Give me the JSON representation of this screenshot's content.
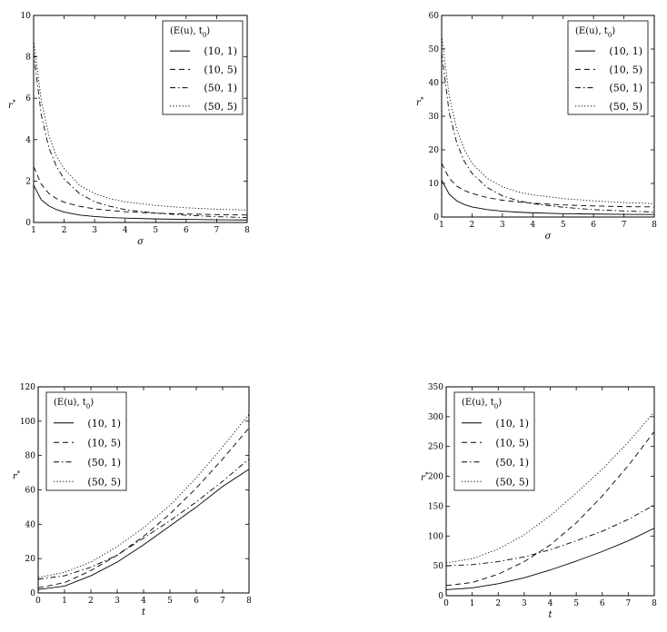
{
  "chart_data": [
    {
      "type": "line",
      "xlabel": "σ",
      "ylabel": "r*",
      "xlim": [
        1,
        8
      ],
      "ylim": [
        0,
        10
      ],
      "xticks": [
        "1",
        "2",
        "3",
        "4",
        "5",
        "6",
        "7",
        "8"
      ],
      "yticks": [
        "0",
        "2",
        "4",
        "6",
        "8",
        "10"
      ],
      "legend_title": "(E(u), t0)",
      "legend_position": "top-right",
      "x": [
        1.0,
        1.25,
        1.5,
        1.75,
        2.0,
        2.5,
        3.0,
        3.5,
        4.0,
        5.0,
        6.0,
        7.0,
        8.0
      ],
      "series": [
        {
          "name": "(10, 1)",
          "values": [
            1.8,
            1.1,
            0.8,
            0.62,
            0.5,
            0.36,
            0.29,
            0.24,
            0.21,
            0.17,
            0.15,
            0.13,
            0.12
          ],
          "dash": "solid"
        },
        {
          "name": "(10, 5)",
          "values": [
            2.7,
            1.85,
            1.4,
            1.15,
            0.98,
            0.78,
            0.66,
            0.58,
            0.52,
            0.45,
            0.41,
            0.38,
            0.36
          ],
          "dash": "dashed"
        },
        {
          "name": "(50, 1)",
          "values": [
            8.2,
            5.2,
            3.6,
            2.7,
            2.1,
            1.4,
            1.0,
            0.78,
            0.62,
            0.45,
            0.35,
            0.28,
            0.24
          ],
          "dash": "dashdot"
        },
        {
          "name": "(50, 5)",
          "values": [
            8.8,
            5.9,
            4.2,
            3.2,
            2.6,
            1.8,
            1.4,
            1.15,
            1.0,
            0.82,
            0.71,
            0.64,
            0.6
          ],
          "dash": "dotted"
        }
      ]
    },
    {
      "type": "line",
      "xlabel": "σ",
      "ylabel": "r*",
      "xlim": [
        1,
        8
      ],
      "ylim": [
        0,
        60
      ],
      "xticks": [
        "1",
        "2",
        "3",
        "4",
        "5",
        "6",
        "7",
        "8"
      ],
      "yticks": [
        "0",
        "10",
        "20",
        "30",
        "40",
        "50",
        "60"
      ],
      "legend_title": "(E(u), t0)",
      "legend_position": "top-right",
      "x": [
        1.0,
        1.25,
        1.5,
        1.75,
        2.0,
        2.5,
        3.0,
        3.5,
        4.0,
        5.0,
        6.0,
        7.0,
        8.0
      ],
      "series": [
        {
          "name": "(10, 1)",
          "values": [
            11,
            6.8,
            4.8,
            3.7,
            3.0,
            2.2,
            1.75,
            1.45,
            1.25,
            1.0,
            0.88,
            0.8,
            0.75
          ],
          "dash": "solid"
        },
        {
          "name": "(10, 5)",
          "values": [
            16,
            11.5,
            9.2,
            7.9,
            7.0,
            5.8,
            5.0,
            4.5,
            4.1,
            3.6,
            3.3,
            3.1,
            3.0
          ],
          "dash": "dashed"
        },
        {
          "name": "(50, 1)",
          "values": [
            49,
            31,
            22,
            16.5,
            13,
            8.8,
            6.3,
            4.9,
            4.0,
            2.9,
            2.2,
            1.8,
            1.5
          ],
          "dash": "dashdot"
        },
        {
          "name": "(50, 5)",
          "values": [
            54,
            36,
            26,
            20,
            16,
            11.5,
            9.0,
            7.5,
            6.6,
            5.5,
            4.8,
            4.3,
            4.0
          ],
          "dash": "dotted"
        }
      ]
    },
    {
      "type": "line",
      "xlabel": "t",
      "ylabel": "r*",
      "xlim": [
        0,
        8
      ],
      "ylim": [
        0,
        120
      ],
      "xticks": [
        "0",
        "1",
        "2",
        "3",
        "4",
        "5",
        "6",
        "7",
        "8"
      ],
      "yticks": [
        "0",
        "20",
        "40",
        "60",
        "80",
        "100",
        "120"
      ],
      "legend_title": "(E(u), t0)",
      "legend_position": "top-left",
      "x": [
        0,
        1,
        2,
        3,
        4,
        5,
        6,
        7,
        8
      ],
      "series": [
        {
          "name": "(10, 1)",
          "values": [
            2,
            4,
            10,
            18,
            28,
            39,
            50,
            62,
            72
          ],
          "dash": "solid"
        },
        {
          "name": "(10, 5)",
          "values": [
            3,
            6,
            13,
            22,
            33,
            46,
            61,
            78,
            96
          ],
          "dash": "dashed"
        },
        {
          "name": "(50, 1)",
          "values": [
            8,
            10,
            15,
            22,
            32,
            42,
            53,
            65,
            78
          ],
          "dash": "dashdot"
        },
        {
          "name": "(50, 5)",
          "values": [
            9,
            12,
            18,
            27,
            38,
            51,
            67,
            85,
            104
          ],
          "dash": "dotted"
        }
      ]
    },
    {
      "type": "line",
      "xlabel": "t",
      "ylabel": "r*",
      "xlim": [
        0,
        8
      ],
      "ylim": [
        0,
        350
      ],
      "xticks": [
        "0",
        "1",
        "2",
        "3",
        "4",
        "5",
        "6",
        "7",
        "8"
      ],
      "yticks": [
        "0",
        "50",
        "100",
        "150",
        "200",
        "250",
        "300",
        "350"
      ],
      "legend_title": "(E(u), t0)",
      "legend_position": "top-left",
      "x": [
        0,
        1,
        2,
        3,
        4,
        5,
        6,
        7,
        8
      ],
      "series": [
        {
          "name": "(10, 1)",
          "values": [
            10,
            13,
            20,
            30,
            43,
            58,
            74,
            92,
            113
          ],
          "dash": "solid"
        },
        {
          "name": "(10, 5)",
          "values": [
            17,
            22,
            36,
            57,
            85,
            122,
            167,
            218,
            275
          ],
          "dash": "dashed"
        },
        {
          "name": "(50, 1)",
          "values": [
            50,
            52,
            57,
            65,
            77,
            92,
            108,
            128,
            152
          ],
          "dash": "dashdot"
        },
        {
          "name": "(50, 5)",
          "values": [
            55,
            62,
            78,
            102,
            134,
            172,
            212,
            257,
            308
          ],
          "dash": "dotted"
        }
      ]
    }
  ]
}
